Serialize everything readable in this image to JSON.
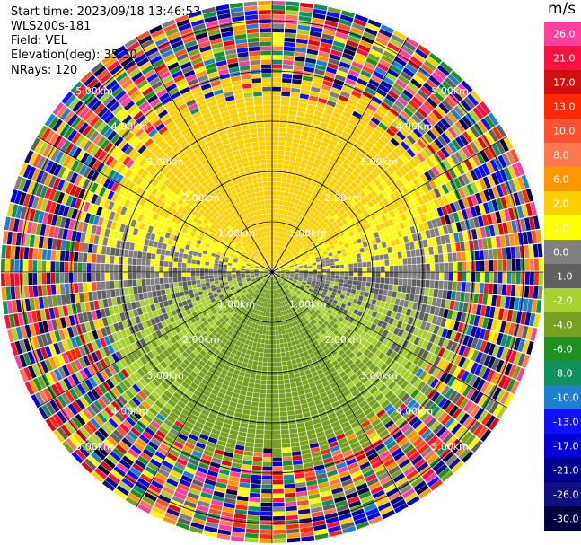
{
  "header": {
    "start_time": "Start time: 2023/09/18 13:46:53",
    "instrument": "WLS200s-181",
    "field": "Field: VEL",
    "elevation": "Elevation(deg): 35.30",
    "nrays": "NRays: 120"
  },
  "colorbar": {
    "unit": "m/s",
    "ticks": [
      "26.0",
      "21.0",
      "17.0",
      "13.0",
      "10.0",
      "8.0",
      "6.0",
      "2.0",
      "1.0",
      "0.0",
      "-1.0",
      "-2.0",
      "-4.0",
      "-6.0",
      "-8.0",
      "-10.0",
      "-13.0",
      "-17.0",
      "-21.0",
      "-26.0",
      "-30.0"
    ],
    "colors": [
      "#ff40a0",
      "#ff1040",
      "#d01010",
      "#ff2800",
      "#ff5030",
      "#ff7850",
      "#ff9800",
      "#ffd000",
      "#ffff00",
      "#808080",
      "#606060",
      "#a8d030",
      "#78a020",
      "#209020",
      "#109060",
      "#2080d0",
      "#1010ff",
      "#0000d0",
      "#000090",
      "#101080",
      "#000040"
    ]
  },
  "chart_data": {
    "type": "ppi",
    "field": "VEL",
    "units": "m/s",
    "nrays": 120,
    "elevation_deg": 35.3,
    "range_rings_km": [
      "1.00km",
      "2.00km",
      "3.00km",
      "4.00km",
      "5.00km"
    ],
    "max_range_km": 5.4,
    "vmin": -30,
    "vmax": 30
  }
}
